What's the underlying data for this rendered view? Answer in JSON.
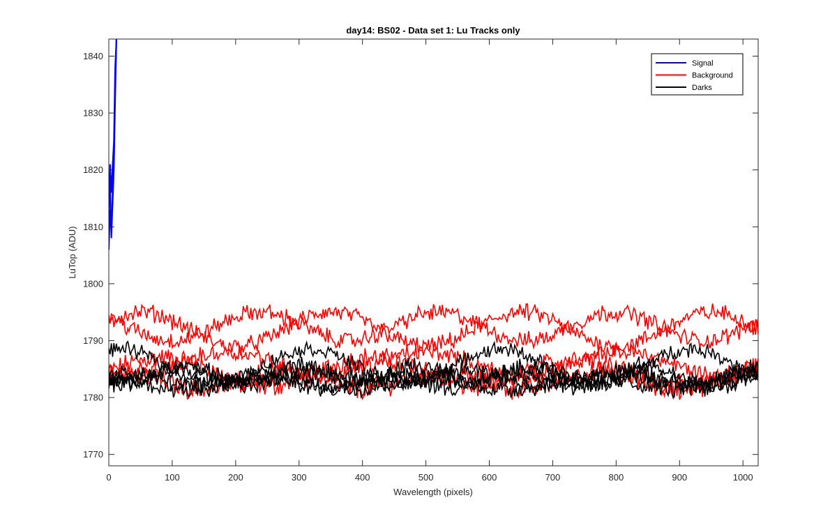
{
  "chart_data": {
    "type": "line",
    "title": "day14: BS02 - Data set 1: Lu Tracks only",
    "xlabel": "Wavelength (pixels)",
    "ylabel": "LuTop (ADU)",
    "xlim": [
      0,
      1024
    ],
    "ylim": [
      1768,
      1843
    ],
    "xticks": [
      0,
      100,
      200,
      300,
      400,
      500,
      600,
      700,
      800,
      900,
      1000
    ],
    "yticks": [
      1770,
      1780,
      1790,
      1800,
      1810,
      1820,
      1830,
      1840
    ],
    "grid": false,
    "legend_position": "top-right",
    "series": [
      {
        "name": "Signal",
        "color": "#0000ff",
        "traces": [
          {
            "x": [
              0,
              2,
              4,
              6,
              8,
              10,
              12
            ],
            "y": [
              1806,
              1813,
              1809,
              1816,
              1822,
              1835,
              1843
            ]
          },
          {
            "x": [
              0,
              2,
              4,
              6,
              8,
              10,
              12
            ],
            "y": [
              1810,
              1821,
              1816,
              1821,
              1825,
              1838,
              1843
            ]
          },
          {
            "x": [
              0,
              2,
              4,
              6,
              8,
              10,
              12
            ],
            "y": [
              1813,
              1818,
              1808,
              1814,
              1820,
              1832,
              1843
            ]
          }
        ]
      },
      {
        "name": "Background",
        "color": "#ff0000",
        "traces": [
          {
            "base": 1784.5,
            "amp": 2.5,
            "period": 330,
            "phase": 0,
            "noise": 1.5
          },
          {
            "base": 1783,
            "amp": 1.5,
            "period": 250,
            "phase": 1,
            "noise": 1.5
          },
          {
            "base": 1792,
            "amp": 3,
            "period": 300,
            "phase": 0.5,
            "noise": 1.2
          },
          {
            "base": 1792.5,
            "amp": 2.5,
            "period": 280,
            "phase": 2.5,
            "noise": 1.2
          },
          {
            "base": 1786,
            "amp": 2,
            "period": 310,
            "phase": 4,
            "noise": 1.2
          }
        ]
      },
      {
        "name": "Darks",
        "color": "#000000",
        "traces": [
          {
            "base": 1783,
            "amp": 1.2,
            "period": 200,
            "phase": 0.3,
            "noise": 1.3
          },
          {
            "base": 1782.5,
            "amp": 1.0,
            "period": 260,
            "phase": 2,
            "noise": 1.3
          },
          {
            "base": 1784,
            "amp": 1.5,
            "period": 180,
            "phase": 3.5,
            "noise": 1.3
          },
          {
            "base": 1785.5,
            "amp": 3,
            "period": 300,
            "phase": 1.2,
            "noise": 1.0
          },
          {
            "base": 1783.5,
            "amp": 1.2,
            "period": 230,
            "phase": 5,
            "noise": 1.3
          }
        ]
      }
    ]
  }
}
